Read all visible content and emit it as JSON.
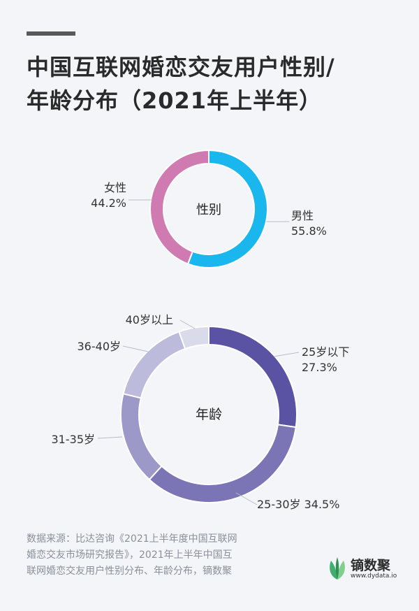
{
  "header": {
    "title_line1": "中国互联网婚恋交友用户性别/",
    "title_line2": "年龄分布（2021年上半年）"
  },
  "chart_data": [
    {
      "type": "pie",
      "center_label": "性别",
      "categories": [
        "男性",
        "女性"
      ],
      "values": [
        55.8,
        44.2
      ],
      "value_labels": [
        "55.8%",
        "44.2%"
      ],
      "colors": [
        "#1ab6ee",
        "#cf7ab1"
      ]
    },
    {
      "type": "pie",
      "center_label": "年龄",
      "categories": [
        "25岁以下",
        "25-30岁",
        "31-35岁",
        "36-40岁",
        "40岁以上"
      ],
      "values": [
        27.3,
        34.5,
        17.0,
        15.7,
        5.5
      ],
      "value_labels": [
        "27.3%",
        "34.5%",
        "",
        "",
        ""
      ],
      "colors": [
        "#5a52a3",
        "#7b75b6",
        "#9c98c8",
        "#bdbbdb",
        "#dadbea"
      ]
    }
  ],
  "footer": {
    "source_line1": "数据来源：比达咨询《2021上半年度中国互联网",
    "source_line2": "婚恋交友市场研究报告》，2021年上半年中国互",
    "source_line3": "联网婚恋交友用户性别分布、年龄分布，镝数聚",
    "logo_name": "镝数聚",
    "logo_url": "www.dydata.io"
  }
}
